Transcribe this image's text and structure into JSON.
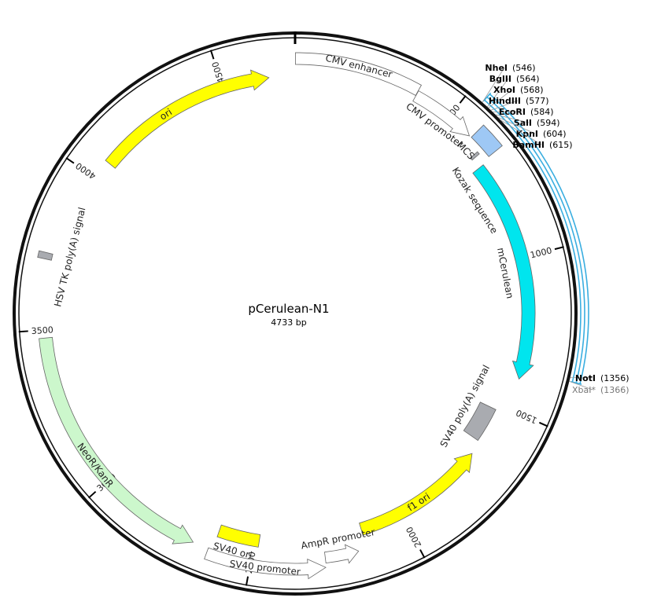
{
  "plasmid": {
    "name": "pCerulean-N1",
    "length": "4733 bp",
    "total_bp": 4733
  },
  "colors": {
    "cyan": "#00e5ee",
    "cyan_dark": "#2aa9c8",
    "yellow": "#ffff00",
    "green": "#ccf7cc",
    "gray": "#a9abb0",
    "mcs": "#9ec8f5",
    "outline": "#ffffff",
    "backbone": "#111111",
    "selection": "#3aaee0"
  },
  "ticks": [
    {
      "bp": 500,
      "label": "500"
    },
    {
      "bp": 1000,
      "label": "1000"
    },
    {
      "bp": 1500,
      "label": "1500"
    },
    {
      "bp": 2000,
      "label": "2000"
    },
    {
      "bp": 2500,
      "label": "2500"
    },
    {
      "bp": 3000,
      "label": "3000"
    },
    {
      "bp": 3500,
      "label": "3500"
    },
    {
      "bp": 4000,
      "label": "4000"
    },
    {
      "bp": 4500,
      "label": "4500"
    }
  ],
  "features": [
    {
      "id": "cmv-enhancer",
      "label": "CMV enhancer",
      "start": 1,
      "end": 380,
      "type": "box",
      "dir": 1,
      "color": "#ffffff"
    },
    {
      "id": "cmv-promoter",
      "label": "CMV promoter",
      "start": 381,
      "end": 584,
      "type": "arrow",
      "dir": 1,
      "color": "#ffffff"
    },
    {
      "id": "mcs",
      "label": "MCS",
      "start": 591,
      "end": 670,
      "type": "box",
      "dir": 1,
      "color": "#9ec8f5"
    },
    {
      "id": "kozak",
      "label": "Kozak sequence",
      "start": 636,
      "end": 645,
      "type": "box",
      "dir": 1,
      "color": "#a9abb0"
    },
    {
      "id": "mcerulean",
      "label": "mCerulean",
      "start": 679,
      "end": 1398,
      "type": "arrow",
      "dir": 1,
      "color": "#00e5ee"
    },
    {
      "id": "sv40-polya",
      "label": "SV40 poly(A) signal",
      "start": 1520,
      "end": 1641,
      "type": "box",
      "dir": 1,
      "color": "#a9abb0"
    },
    {
      "id": "f1-ori",
      "label": "f1 ori",
      "start": 1688,
      "end": 2143,
      "type": "arrow",
      "dir": -1,
      "color": "#ffff00"
    },
    {
      "id": "ampr-promoter",
      "label": "AmpR promoter",
      "start": 2170,
      "end": 2274,
      "type": "arrow",
      "dir": -1,
      "color": "#ffffff"
    },
    {
      "id": "sv40-promoter",
      "label": "SV40 promoter",
      "start": 2276,
      "end": 2633,
      "type": "arrow",
      "dir": -1,
      "color": "#ffffff"
    },
    {
      "id": "sv40-ori",
      "label": "SV40 ori",
      "start": 2484,
      "end": 2619,
      "type": "box",
      "dir": -1,
      "color": "#ffff00"
    },
    {
      "id": "neo-kan",
      "label": "NeoR/KanR",
      "start": 2682,
      "end": 3476,
      "type": "arrow",
      "dir": -1,
      "color": "#ccf7cc"
    },
    {
      "id": "hsv-tk-polya",
      "label": "HSV TK poly(A) signal",
      "start": 3712,
      "end": 3731,
      "type": "box",
      "dir": 1,
      "color": "#a9abb0"
    },
    {
      "id": "ori",
      "label": "ori",
      "start": 4062,
      "end": 4650,
      "type": "arrow",
      "dir": 1,
      "color": "#ffff00"
    }
  ],
  "sites": [
    {
      "name": "NheI",
      "pos": "(546)",
      "bp": 546,
      "gray": false
    },
    {
      "name": "BglII",
      "pos": "(564)",
      "bp": 564,
      "gray": false
    },
    {
      "name": "XhoI",
      "pos": "(568)",
      "bp": 568,
      "gray": false
    },
    {
      "name": "HindIII",
      "pos": "(577)",
      "bp": 577,
      "gray": false
    },
    {
      "name": "EcoRI",
      "pos": "(584)",
      "bp": 584,
      "gray": false
    },
    {
      "name": "SalI",
      "pos": "(594)",
      "bp": 594,
      "gray": false
    },
    {
      "name": "KpnI",
      "pos": "(604)",
      "bp": 604,
      "gray": false
    },
    {
      "name": "BamHI",
      "pos": "(615)",
      "bp": 615,
      "gray": false
    },
    {
      "name": "NotI",
      "pos": "(1356)",
      "bp": 1356,
      "gray": false
    },
    {
      "name": "XbaI*",
      "pos": "(1366)",
      "bp": 1366,
      "gray": true
    }
  ],
  "selection": {
    "start": 546,
    "end": 1366
  }
}
